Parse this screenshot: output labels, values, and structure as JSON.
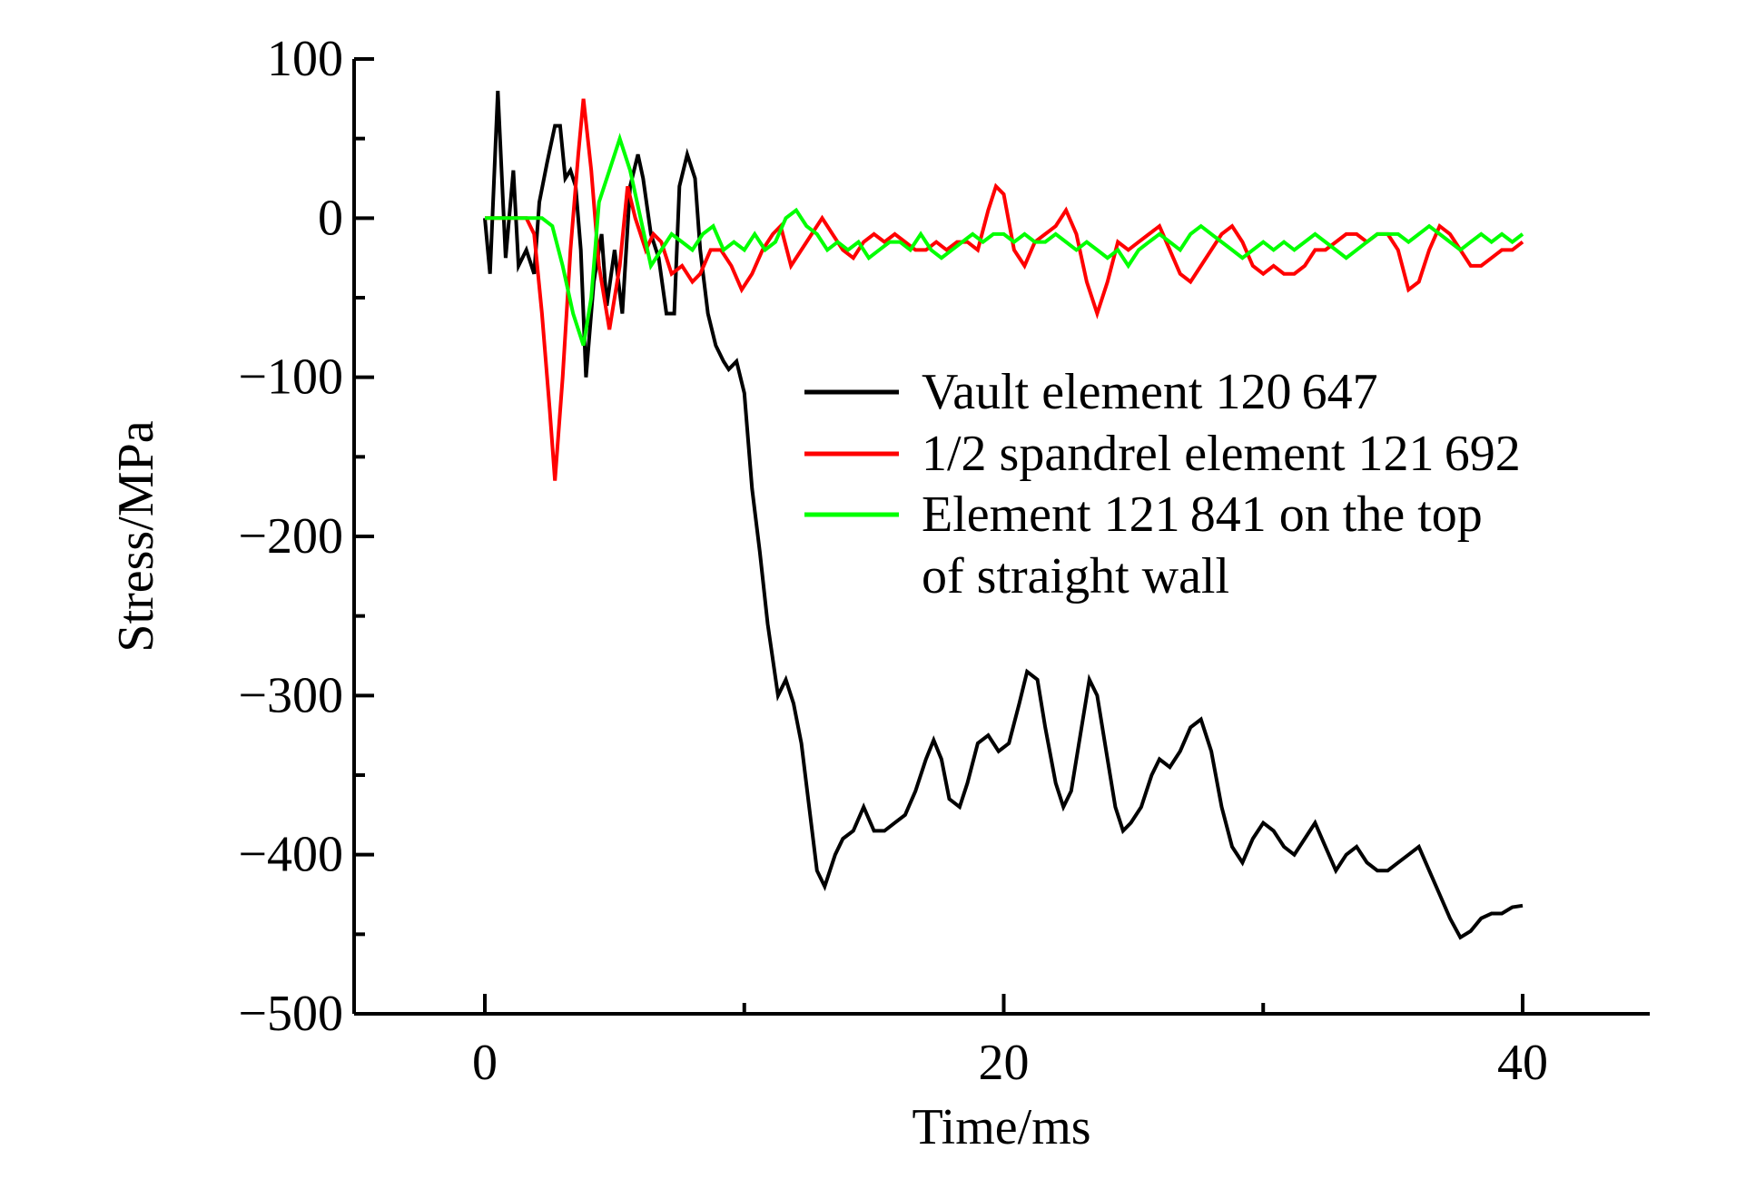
{
  "chart_data": {
    "type": "line",
    "title": "",
    "xlabel": "Time/ms",
    "ylabel": "Stress/MPa",
    "xlim": [
      -5,
      45
    ],
    "ylim": [
      -500,
      100
    ],
    "x_ticks": [
      0,
      20,
      40
    ],
    "x_tick_labels": [
      "0",
      "20",
      "40"
    ],
    "y_ticks": [
      100,
      0,
      -100,
      -200,
      -300,
      -400,
      -500
    ],
    "y_tick_labels": [
      "100",
      "0",
      "−100",
      "−200",
      "−300",
      "−400",
      "−500"
    ],
    "grid": false,
    "legend_position": "center-right",
    "series": [
      {
        "name": "Vault element 120 647",
        "color": "#000000",
        "points": [
          [
            0,
            0
          ],
          [
            0.2,
            -35
          ],
          [
            0.5,
            80
          ],
          [
            0.8,
            -25
          ],
          [
            1.1,
            30
          ],
          [
            1.3,
            -30
          ],
          [
            1.6,
            -20
          ],
          [
            1.9,
            -35
          ],
          [
            2.1,
            10
          ],
          [
            2.4,
            35
          ],
          [
            2.7,
            58
          ],
          [
            2.9,
            58
          ],
          [
            3.1,
            25
          ],
          [
            3.3,
            30
          ],
          [
            3.5,
            20
          ],
          [
            3.7,
            -20
          ],
          [
            3.9,
            -100
          ],
          [
            4.2,
            -40
          ],
          [
            4.5,
            -10
          ],
          [
            4.7,
            -55
          ],
          [
            5.0,
            -20
          ],
          [
            5.3,
            -60
          ],
          [
            5.6,
            20
          ],
          [
            5.9,
            40
          ],
          [
            6.1,
            25
          ],
          [
            6.4,
            -10
          ],
          [
            6.7,
            -25
          ],
          [
            7.0,
            -60
          ],
          [
            7.3,
            -60
          ],
          [
            7.5,
            20
          ],
          [
            7.8,
            40
          ],
          [
            8.1,
            25
          ],
          [
            8.3,
            -20
          ],
          [
            8.6,
            -60
          ],
          [
            8.9,
            -80
          ],
          [
            9.2,
            -90
          ],
          [
            9.4,
            -95
          ],
          [
            9.7,
            -90
          ],
          [
            10.0,
            -110
          ],
          [
            10.3,
            -170
          ],
          [
            10.6,
            -210
          ],
          [
            10.9,
            -255
          ],
          [
            11.3,
            -300
          ],
          [
            11.6,
            -290
          ],
          [
            11.9,
            -305
          ],
          [
            12.2,
            -330
          ],
          [
            12.5,
            -370
          ],
          [
            12.8,
            -410
          ],
          [
            13.1,
            -420
          ],
          [
            13.5,
            -400
          ],
          [
            13.8,
            -390
          ],
          [
            14.2,
            -385
          ],
          [
            14.6,
            -370
          ],
          [
            15.0,
            -385
          ],
          [
            15.4,
            -385
          ],
          [
            15.8,
            -380
          ],
          [
            16.2,
            -375
          ],
          [
            16.6,
            -360
          ],
          [
            17.0,
            -340
          ],
          [
            17.3,
            -328
          ],
          [
            17.6,
            -340
          ],
          [
            17.9,
            -365
          ],
          [
            18.3,
            -370
          ],
          [
            18.6,
            -355
          ],
          [
            19.0,
            -330
          ],
          [
            19.4,
            -325
          ],
          [
            19.8,
            -335
          ],
          [
            20.2,
            -330
          ],
          [
            20.6,
            -305
          ],
          [
            20.9,
            -285
          ],
          [
            21.3,
            -290
          ],
          [
            21.6,
            -320
          ],
          [
            22.0,
            -355
          ],
          [
            22.3,
            -370
          ],
          [
            22.6,
            -360
          ],
          [
            23.0,
            -320
          ],
          [
            23.3,
            -290
          ],
          [
            23.6,
            -300
          ],
          [
            24.0,
            -340
          ],
          [
            24.3,
            -370
          ],
          [
            24.6,
            -385
          ],
          [
            24.9,
            -380
          ],
          [
            25.3,
            -370
          ],
          [
            25.7,
            -350
          ],
          [
            26.0,
            -340
          ],
          [
            26.4,
            -345
          ],
          [
            26.8,
            -335
          ],
          [
            27.2,
            -320
          ],
          [
            27.6,
            -315
          ],
          [
            28.0,
            -335
          ],
          [
            28.4,
            -370
          ],
          [
            28.8,
            -395
          ],
          [
            29.2,
            -405
          ],
          [
            29.6,
            -390
          ],
          [
            30.0,
            -380
          ],
          [
            30.4,
            -385
          ],
          [
            30.8,
            -395
          ],
          [
            31.2,
            -400
          ],
          [
            31.6,
            -390
          ],
          [
            32.0,
            -380
          ],
          [
            32.4,
            -395
          ],
          [
            32.8,
            -410
          ],
          [
            33.2,
            -400
          ],
          [
            33.6,
            -395
          ],
          [
            34.0,
            -405
          ],
          [
            34.4,
            -410
          ],
          [
            34.8,
            -410
          ],
          [
            35.2,
            -405
          ],
          [
            35.6,
            -400
          ],
          [
            36.0,
            -395
          ],
          [
            36.4,
            -410
          ],
          [
            36.8,
            -425
          ],
          [
            37.2,
            -440
          ],
          [
            37.6,
            -452
          ],
          [
            38.0,
            -448
          ],
          [
            38.4,
            -440
          ],
          [
            38.8,
            -437
          ],
          [
            39.2,
            -437
          ],
          [
            39.6,
            -433
          ],
          [
            40.0,
            -432
          ]
        ]
      },
      {
        "name": "1/2 spandrel element 121 692",
        "color": "#ff0000",
        "points": [
          [
            0,
            0
          ],
          [
            1.6,
            0
          ],
          [
            1.9,
            -10
          ],
          [
            2.2,
            -60
          ],
          [
            2.5,
            -120
          ],
          [
            2.7,
            -165
          ],
          [
            3.0,
            -100
          ],
          [
            3.3,
            -20
          ],
          [
            3.6,
            40
          ],
          [
            3.8,
            75
          ],
          [
            4.1,
            30
          ],
          [
            4.4,
            -30
          ],
          [
            4.8,
            -70
          ],
          [
            5.2,
            -30
          ],
          [
            5.5,
            20
          ],
          [
            5.8,
            0
          ],
          [
            6.2,
            -20
          ],
          [
            6.5,
            -10
          ],
          [
            6.8,
            -15
          ],
          [
            7.2,
            -35
          ],
          [
            7.6,
            -30
          ],
          [
            8.0,
            -40
          ],
          [
            8.3,
            -35
          ],
          [
            8.7,
            -20
          ],
          [
            9.1,
            -20
          ],
          [
            9.5,
            -30
          ],
          [
            9.9,
            -45
          ],
          [
            10.3,
            -35
          ],
          [
            10.7,
            -20
          ],
          [
            11.1,
            -10
          ],
          [
            11.4,
            -5
          ],
          [
            11.8,
            -30
          ],
          [
            12.2,
            -20
          ],
          [
            12.6,
            -10
          ],
          [
            13.0,
            0
          ],
          [
            13.4,
            -10
          ],
          [
            13.8,
            -20
          ],
          [
            14.2,
            -25
          ],
          [
            14.6,
            -15
          ],
          [
            15.0,
            -10
          ],
          [
            15.4,
            -15
          ],
          [
            15.8,
            -10
          ],
          [
            16.2,
            -15
          ],
          [
            16.6,
            -20
          ],
          [
            17.0,
            -20
          ],
          [
            17.4,
            -15
          ],
          [
            17.8,
            -20
          ],
          [
            18.2,
            -15
          ],
          [
            18.6,
            -15
          ],
          [
            19.0,
            -20
          ],
          [
            19.4,
            5
          ],
          [
            19.7,
            20
          ],
          [
            20.0,
            15
          ],
          [
            20.4,
            -20
          ],
          [
            20.8,
            -30
          ],
          [
            21.2,
            -15
          ],
          [
            21.6,
            -10
          ],
          [
            22.0,
            -5
          ],
          [
            22.4,
            5
          ],
          [
            22.8,
            -10
          ],
          [
            23.2,
            -40
          ],
          [
            23.6,
            -60
          ],
          [
            24.0,
            -40
          ],
          [
            24.4,
            -15
          ],
          [
            24.8,
            -20
          ],
          [
            25.2,
            -15
          ],
          [
            25.6,
            -10
          ],
          [
            26.0,
            -5
          ],
          [
            26.4,
            -20
          ],
          [
            26.8,
            -35
          ],
          [
            27.2,
            -40
          ],
          [
            27.6,
            -30
          ],
          [
            28.0,
            -20
          ],
          [
            28.4,
            -10
          ],
          [
            28.8,
            -5
          ],
          [
            29.2,
            -15
          ],
          [
            29.6,
            -30
          ],
          [
            30.0,
            -35
          ],
          [
            30.4,
            -30
          ],
          [
            30.8,
            -35
          ],
          [
            31.2,
            -35
          ],
          [
            31.6,
            -30
          ],
          [
            32.0,
            -20
          ],
          [
            32.4,
            -20
          ],
          [
            32.8,
            -15
          ],
          [
            33.2,
            -10
          ],
          [
            33.6,
            -10
          ],
          [
            34.0,
            -15
          ],
          [
            34.4,
            -10
          ],
          [
            34.8,
            -10
          ],
          [
            35.2,
            -20
          ],
          [
            35.6,
            -45
          ],
          [
            36.0,
            -40
          ],
          [
            36.4,
            -20
          ],
          [
            36.8,
            -5
          ],
          [
            37.2,
            -10
          ],
          [
            37.6,
            -20
          ],
          [
            38.0,
            -30
          ],
          [
            38.4,
            -30
          ],
          [
            38.8,
            -25
          ],
          [
            39.2,
            -20
          ],
          [
            39.6,
            -20
          ],
          [
            40.0,
            -15
          ]
        ]
      },
      {
        "name": "Element 121 841 on the top of straight wall",
        "color": "#00ff00",
        "points": [
          [
            0,
            0
          ],
          [
            1.8,
            0
          ],
          [
            2.2,
            0
          ],
          [
            2.6,
            -5
          ],
          [
            3.0,
            -30
          ],
          [
            3.4,
            -60
          ],
          [
            3.8,
            -80
          ],
          [
            4.1,
            -50
          ],
          [
            4.4,
            10
          ],
          [
            4.8,
            30
          ],
          [
            5.2,
            50
          ],
          [
            5.6,
            30
          ],
          [
            6.0,
            0
          ],
          [
            6.4,
            -30
          ],
          [
            6.8,
            -20
          ],
          [
            7.2,
            -10
          ],
          [
            7.6,
            -15
          ],
          [
            8.0,
            -20
          ],
          [
            8.4,
            -10
          ],
          [
            8.8,
            -5
          ],
          [
            9.2,
            -20
          ],
          [
            9.6,
            -15
          ],
          [
            10.0,
            -20
          ],
          [
            10.4,
            -10
          ],
          [
            10.8,
            -20
          ],
          [
            11.2,
            -15
          ],
          [
            11.6,
            0
          ],
          [
            12.0,
            5
          ],
          [
            12.4,
            -5
          ],
          [
            12.8,
            -10
          ],
          [
            13.2,
            -20
          ],
          [
            13.6,
            -15
          ],
          [
            14.0,
            -20
          ],
          [
            14.4,
            -15
          ],
          [
            14.8,
            -25
          ],
          [
            15.2,
            -20
          ],
          [
            15.6,
            -15
          ],
          [
            16.0,
            -15
          ],
          [
            16.4,
            -20
          ],
          [
            16.8,
            -10
          ],
          [
            17.2,
            -20
          ],
          [
            17.6,
            -25
          ],
          [
            18.0,
            -20
          ],
          [
            18.4,
            -15
          ],
          [
            18.8,
            -10
          ],
          [
            19.2,
            -15
          ],
          [
            19.6,
            -10
          ],
          [
            20.0,
            -10
          ],
          [
            20.4,
            -15
          ],
          [
            20.8,
            -10
          ],
          [
            21.2,
            -15
          ],
          [
            21.6,
            -15
          ],
          [
            22.0,
            -10
          ],
          [
            22.4,
            -15
          ],
          [
            22.8,
            -20
          ],
          [
            23.2,
            -15
          ],
          [
            23.6,
            -20
          ],
          [
            24.0,
            -25
          ],
          [
            24.4,
            -20
          ],
          [
            24.8,
            -30
          ],
          [
            25.2,
            -20
          ],
          [
            25.6,
            -15
          ],
          [
            26.0,
            -10
          ],
          [
            26.4,
            -15
          ],
          [
            26.8,
            -20
          ],
          [
            27.2,
            -10
          ],
          [
            27.6,
            -5
          ],
          [
            28.0,
            -10
          ],
          [
            28.4,
            -15
          ],
          [
            28.8,
            -20
          ],
          [
            29.2,
            -25
          ],
          [
            29.6,
            -20
          ],
          [
            30.0,
            -15
          ],
          [
            30.4,
            -20
          ],
          [
            30.8,
            -15
          ],
          [
            31.2,
            -20
          ],
          [
            31.6,
            -15
          ],
          [
            32.0,
            -10
          ],
          [
            32.4,
            -15
          ],
          [
            32.8,
            -20
          ],
          [
            33.2,
            -25
          ],
          [
            33.6,
            -20
          ],
          [
            34.0,
            -15
          ],
          [
            34.4,
            -10
          ],
          [
            34.8,
            -10
          ],
          [
            35.2,
            -10
          ],
          [
            35.6,
            -15
          ],
          [
            36.0,
            -10
          ],
          [
            36.4,
            -5
          ],
          [
            36.8,
            -10
          ],
          [
            37.2,
            -15
          ],
          [
            37.6,
            -20
          ],
          [
            38.0,
            -15
          ],
          [
            38.4,
            -10
          ],
          [
            38.8,
            -15
          ],
          [
            39.2,
            -10
          ],
          [
            39.6,
            -15
          ],
          [
            40.0,
            -10
          ]
        ]
      }
    ]
  }
}
